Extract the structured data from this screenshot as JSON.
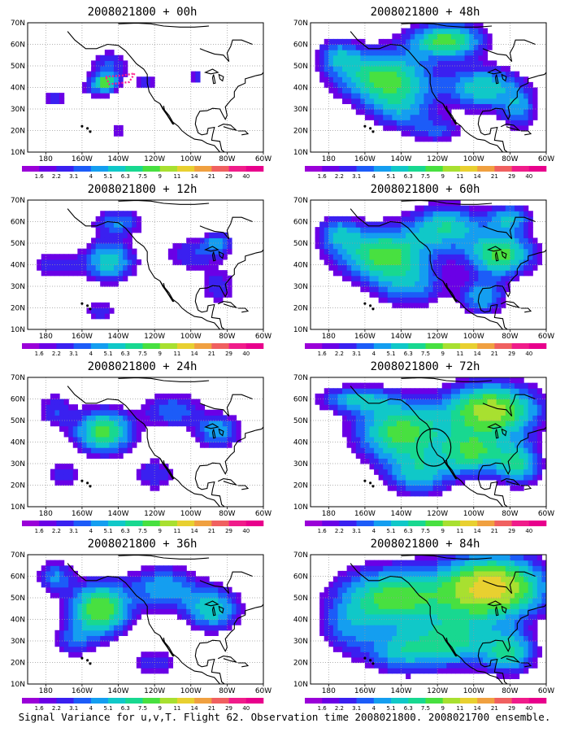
{
  "panels": [
    {
      "title": "2008021800 + 00h",
      "lead": "00h"
    },
    {
      "title": "2008021800 + 48h",
      "lead": "48h"
    },
    {
      "title": "2008021800 + 12h",
      "lead": "12h"
    },
    {
      "title": "2008021800 + 60h",
      "lead": "60h"
    },
    {
      "title": "2008021800 + 24h",
      "lead": "24h"
    },
    {
      "title": "2008021800 + 72h",
      "lead": "72h"
    },
    {
      "title": "2008021800 + 36h",
      "lead": "36h"
    },
    {
      "title": "2008021800 + 84h",
      "lead": "84h"
    }
  ],
  "axes": {
    "lon_labels": [
      "180",
      "160W",
      "140W",
      "120W",
      "100W",
      "80W",
      "60W"
    ],
    "lat_labels": [
      "10N",
      "20N",
      "30N",
      "40N",
      "50N",
      "60N",
      "70N"
    ]
  },
  "colorbar": {
    "labels": [
      "1.6",
      "2.2",
      "3.1",
      "4",
      "5.1",
      "6.3",
      "7.5",
      "9",
      "11",
      "14",
      "21",
      "29",
      "40"
    ],
    "colors": [
      "#9a00d8",
      "#6a00e6",
      "#3a20f0",
      "#1c5cf8",
      "#149ef0",
      "#10c8c8",
      "#18d890",
      "#48e040",
      "#a8e030",
      "#e8d030",
      "#f0a040",
      "#f06060",
      "#f01c8a",
      "#e8008c"
    ]
  },
  "palette": {
    "purple": "#9a00d8",
    "blue": "#2a80f0",
    "cyan": "#20c8d0",
    "green": "#60e060",
    "yellow": "#e8d040",
    "orange": "#f0a848",
    "pink": "#ff2090"
  },
  "caption": "Signal Variance for u,v,T. Flight 62. Observation time 2008021800. 2008021700 ensemble."
}
